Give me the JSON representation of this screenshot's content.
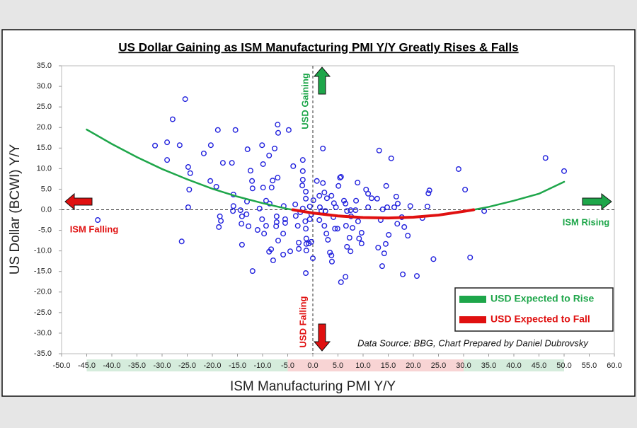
{
  "chart_data": {
    "type": "scatter",
    "title": "US Dollar Gaining as ISM Manufacturing PMI Y/Y Greatly Rises & Falls",
    "x_label": "ISM Manufacturing PMI Y/Y",
    "y_label": "US Dollar (BCWI) Y/Y",
    "source": "Data Source: BBG, Chart Prepared by Daniel Dubrovsky",
    "annotations": {
      "usd_gaining": "USD Gaining",
      "usd_falling": "USD Falling",
      "ism_falling": "ISM Falling",
      "ism_rising": "ISM Rising"
    },
    "marker_color": "#2222dd",
    "legend": "lower right",
    "xlim": [
      -50,
      60
    ],
    "ylim": [
      -35,
      35
    ],
    "xticks": [
      {
        "value": -50,
        "label": "-50.0"
      },
      {
        "value": -45,
        "label": "-45.0"
      },
      {
        "value": -40,
        "label": "-40.0"
      },
      {
        "value": -35,
        "label": "-35.0"
      },
      {
        "value": -30,
        "label": "-30.0"
      },
      {
        "value": -25,
        "label": "-25.0"
      },
      {
        "value": -20,
        "label": "-20.0"
      },
      {
        "value": -15,
        "label": "-15.0"
      },
      {
        "value": -10,
        "label": "-10.0"
      },
      {
        "value": -5,
        "label": "-5.0"
      },
      {
        "value": 0,
        "label": "0.0"
      },
      {
        "value": 5,
        "label": "5.0"
      },
      {
        "value": 10,
        "label": "10.0"
      },
      {
        "value": 15,
        "label": "15.0"
      },
      {
        "value": 20,
        "label": "20.0"
      },
      {
        "value": 25,
        "label": "25.0"
      },
      {
        "value": 30,
        "label": "30.0"
      },
      {
        "value": 35,
        "label": "35.0"
      },
      {
        "value": 40,
        "label": "40.0"
      },
      {
        "value": 45,
        "label": "45.0"
      },
      {
        "value": 50,
        "label": "50.0"
      },
      {
        "value": 55,
        "label": "55.0"
      },
      {
        "value": 60,
        "label": "60.0"
      }
    ],
    "yticks": [
      {
        "value": 35,
        "label": "35.0"
      },
      {
        "value": 30,
        "label": "30.0"
      },
      {
        "value": 25,
        "label": "25.0"
      },
      {
        "value": 20,
        "label": "20.0"
      },
      {
        "value": 15,
        "label": "15.0"
      },
      {
        "value": 10,
        "label": "10.0"
      },
      {
        "value": 5,
        "label": "5.0"
      },
      {
        "value": 0,
        "label": "0.0"
      },
      {
        "value": -5,
        "label": "-5.0"
      },
      {
        "value": -10,
        "label": "-10.0"
      },
      {
        "value": -15,
        "label": "-15.0"
      },
      {
        "value": -20,
        "label": "-20.0"
      },
      {
        "value": -25,
        "label": "-25.0"
      },
      {
        "value": -30,
        "label": "-30.0"
      },
      {
        "value": -35,
        "label": "-35.0"
      }
    ],
    "x": [
      -42.8,
      -25.4,
      -27.9,
      -31.4,
      -29.0,
      -26.5,
      -29.0,
      -24.8,
      -24.4,
      -24.6,
      -24.8,
      -26.1,
      -21.7,
      -20.3,
      -18.9,
      -17.9,
      -16.1,
      -20.4,
      -19.2,
      -18.5,
      -18.3,
      -18.7,
      -15.4,
      -15.8,
      -15.8,
      -14.4,
      -14.1,
      -14.2,
      -14.1,
      -15.9,
      -13.0,
      -12.4,
      -12.1,
      -12.0,
      -13.1,
      -13.2,
      -12.8,
      -12.0,
      -11.0,
      -10.1,
      -9.9,
      -8.7,
      -9.9,
      -9.3,
      -8.6,
      -10.6,
      -10.1,
      -9.3,
      -9.7,
      -8.7,
      -8.3,
      -8.2,
      -7.6,
      -7.0,
      -6.9,
      -4.8,
      -8.0,
      -7.0,
      -6.9,
      -5.9,
      -5.5,
      -5.5,
      -5.8,
      -7.2,
      -7.2,
      -5.9,
      -7.9,
      -7.3,
      -4.5,
      -3.9,
      -3.5,
      -3.4,
      -3.0,
      -2.8,
      -2.8,
      -2.0,
      -2.0,
      -2.0,
      -2.1,
      -1.4,
      -1.4,
      -2.0,
      -2.5,
      -1.5,
      -1.4,
      -1.3,
      -1.3,
      -1.3,
      -1.4,
      -0.8,
      -0.3,
      -0.6,
      0.1,
      -0.3,
      -0.6,
      0.0,
      0.8,
      1.3,
      1.4,
      1.7,
      1.3,
      2.0,
      2.0,
      2.3,
      2.8,
      2.5,
      2.3,
      2.7,
      3.0,
      3.4,
      3.7,
      3.8,
      3.7,
      4.2,
      4.6,
      4.1,
      4.4,
      4.9,
      5.4,
      5.1,
      5.6,
      6.2,
      6.5,
      6.8,
      6.6,
      6.8,
      7.5,
      7.6,
      7.5,
      5.6,
      6.5,
      7.9,
      7.3,
      8.9,
      8.6,
      8.5,
      9.0,
      9.2,
      9.7,
      9.7,
      11.0,
      11.0,
      10.6,
      11.7,
      13.2,
      13.5,
      12.8,
      13.0,
      13.8,
      13.9,
      14.2,
      14.5,
      14.8,
      14.6,
      15.6,
      15.1,
      16.2,
      16.6,
      16.9,
      17.9,
      16.8,
      17.7,
      18.2,
      18.9,
      19.4,
      20.7,
      21.8,
      22.8,
      23.0,
      23.2,
      24.0,
      29.0,
      30.3,
      31.3,
      34.1,
      46.3,
      50.0
    ],
    "values": [
      -2.5,
      26.9,
      22.0,
      15.6,
      16.4,
      15.7,
      12.1,
      10.4,
      8.9,
      4.9,
      0.6,
      -7.7,
      13.7,
      15.7,
      19.4,
      11.4,
      11.4,
      7.0,
      5.6,
      -1.6,
      -2.7,
      -4.2,
      19.4,
      3.7,
      0.9,
      -0.1,
      -1.6,
      -3.4,
      -8.5,
      -0.3,
      14.7,
      9.5,
      7.0,
      5.2,
      2.0,
      -1.1,
      -4.0,
      -14.9,
      -4.9,
      15.7,
      11.1,
      13.2,
      5.4,
      2.2,
      1.5,
      0.3,
      -2.3,
      -3.9,
      -5.8,
      -10.2,
      -9.6,
      5.4,
      14.9,
      20.7,
      18.7,
      19.4,
      7.1,
      7.8,
      -7.5,
      -5.8,
      -3.2,
      -2.3,
      0.9,
      -1.6,
      -3.0,
      -10.9,
      -12.3,
      -4.0,
      -10.1,
      10.6,
      1.3,
      -1.5,
      -3.9,
      -8.0,
      -9.5,
      12.1,
      9.4,
      7.3,
      5.9,
      4.4,
      2.7,
      0.3,
      -0.6,
      -2.8,
      -4.6,
      -7.0,
      -8.3,
      -9.9,
      -15.4,
      -8.2,
      -7.8,
      0.8,
      2.3,
      -1.1,
      -2.3,
      -11.8,
      7.0,
      3.4,
      0.6,
      -0.3,
      -2.5,
      14.9,
      6.5,
      4.2,
      2.8,
      -0.3,
      -3.9,
      -5.8,
      -7.3,
      -10.4,
      -11.1,
      -12.6,
      3.4,
      1.6,
      0.6,
      -1.8,
      -4.6,
      -4.6,
      7.8,
      5.8,
      8.0,
      2.2,
      1.5,
      -0.3,
      -3.9,
      -9.0,
      -0.1,
      -1.6,
      -10.1,
      -17.6,
      -16.3,
      -4.4,
      -6.8,
      6.6,
      2.2,
      -0.1,
      -2.8,
      -7.0,
      -8.2,
      -5.6,
      3.9,
      0.6,
      4.9,
      2.8,
      14.4,
      -2.5,
      2.7,
      -9.2,
      -13.7,
      0.1,
      -10.6,
      -8.3,
      0.6,
      5.8,
      12.5,
      -6.1,
      0.6,
      3.2,
      1.5,
      -15.7,
      -3.4,
      -1.8,
      -4.2,
      -6.3,
      0.9,
      -16.1,
      -2.0,
      0.8,
      4.0,
      4.7,
      -12.0,
      9.9,
      4.9,
      -11.6,
      -0.3,
      12.6,
      9.4
    ],
    "fit_lines": [
      {
        "name": "USD Expected to Rise",
        "color": "#1ea64a",
        "x": [
          -45,
          -40,
          -35,
          -30,
          -25,
          -20,
          -15,
          -10,
          -5,
          -4,
          null,
          32,
          35,
          40,
          45,
          50
        ],
        "values": [
          19.5,
          16.0,
          12.8,
          9.9,
          7.4,
          5.1,
          3.2,
          1.6,
          0.2,
          0,
          null,
          0,
          0.7,
          2.2,
          3.9,
          6.8
        ]
      },
      {
        "name": "USD Expected to Fall",
        "color": "#e01010",
        "x": [
          -4,
          0,
          5,
          10,
          15,
          20,
          25,
          30,
          32
        ],
        "values": [
          0,
          -0.8,
          -1.5,
          -1.9,
          -2.0,
          -1.8,
          -1.3,
          -0.4,
          0
        ]
      }
    ]
  }
}
